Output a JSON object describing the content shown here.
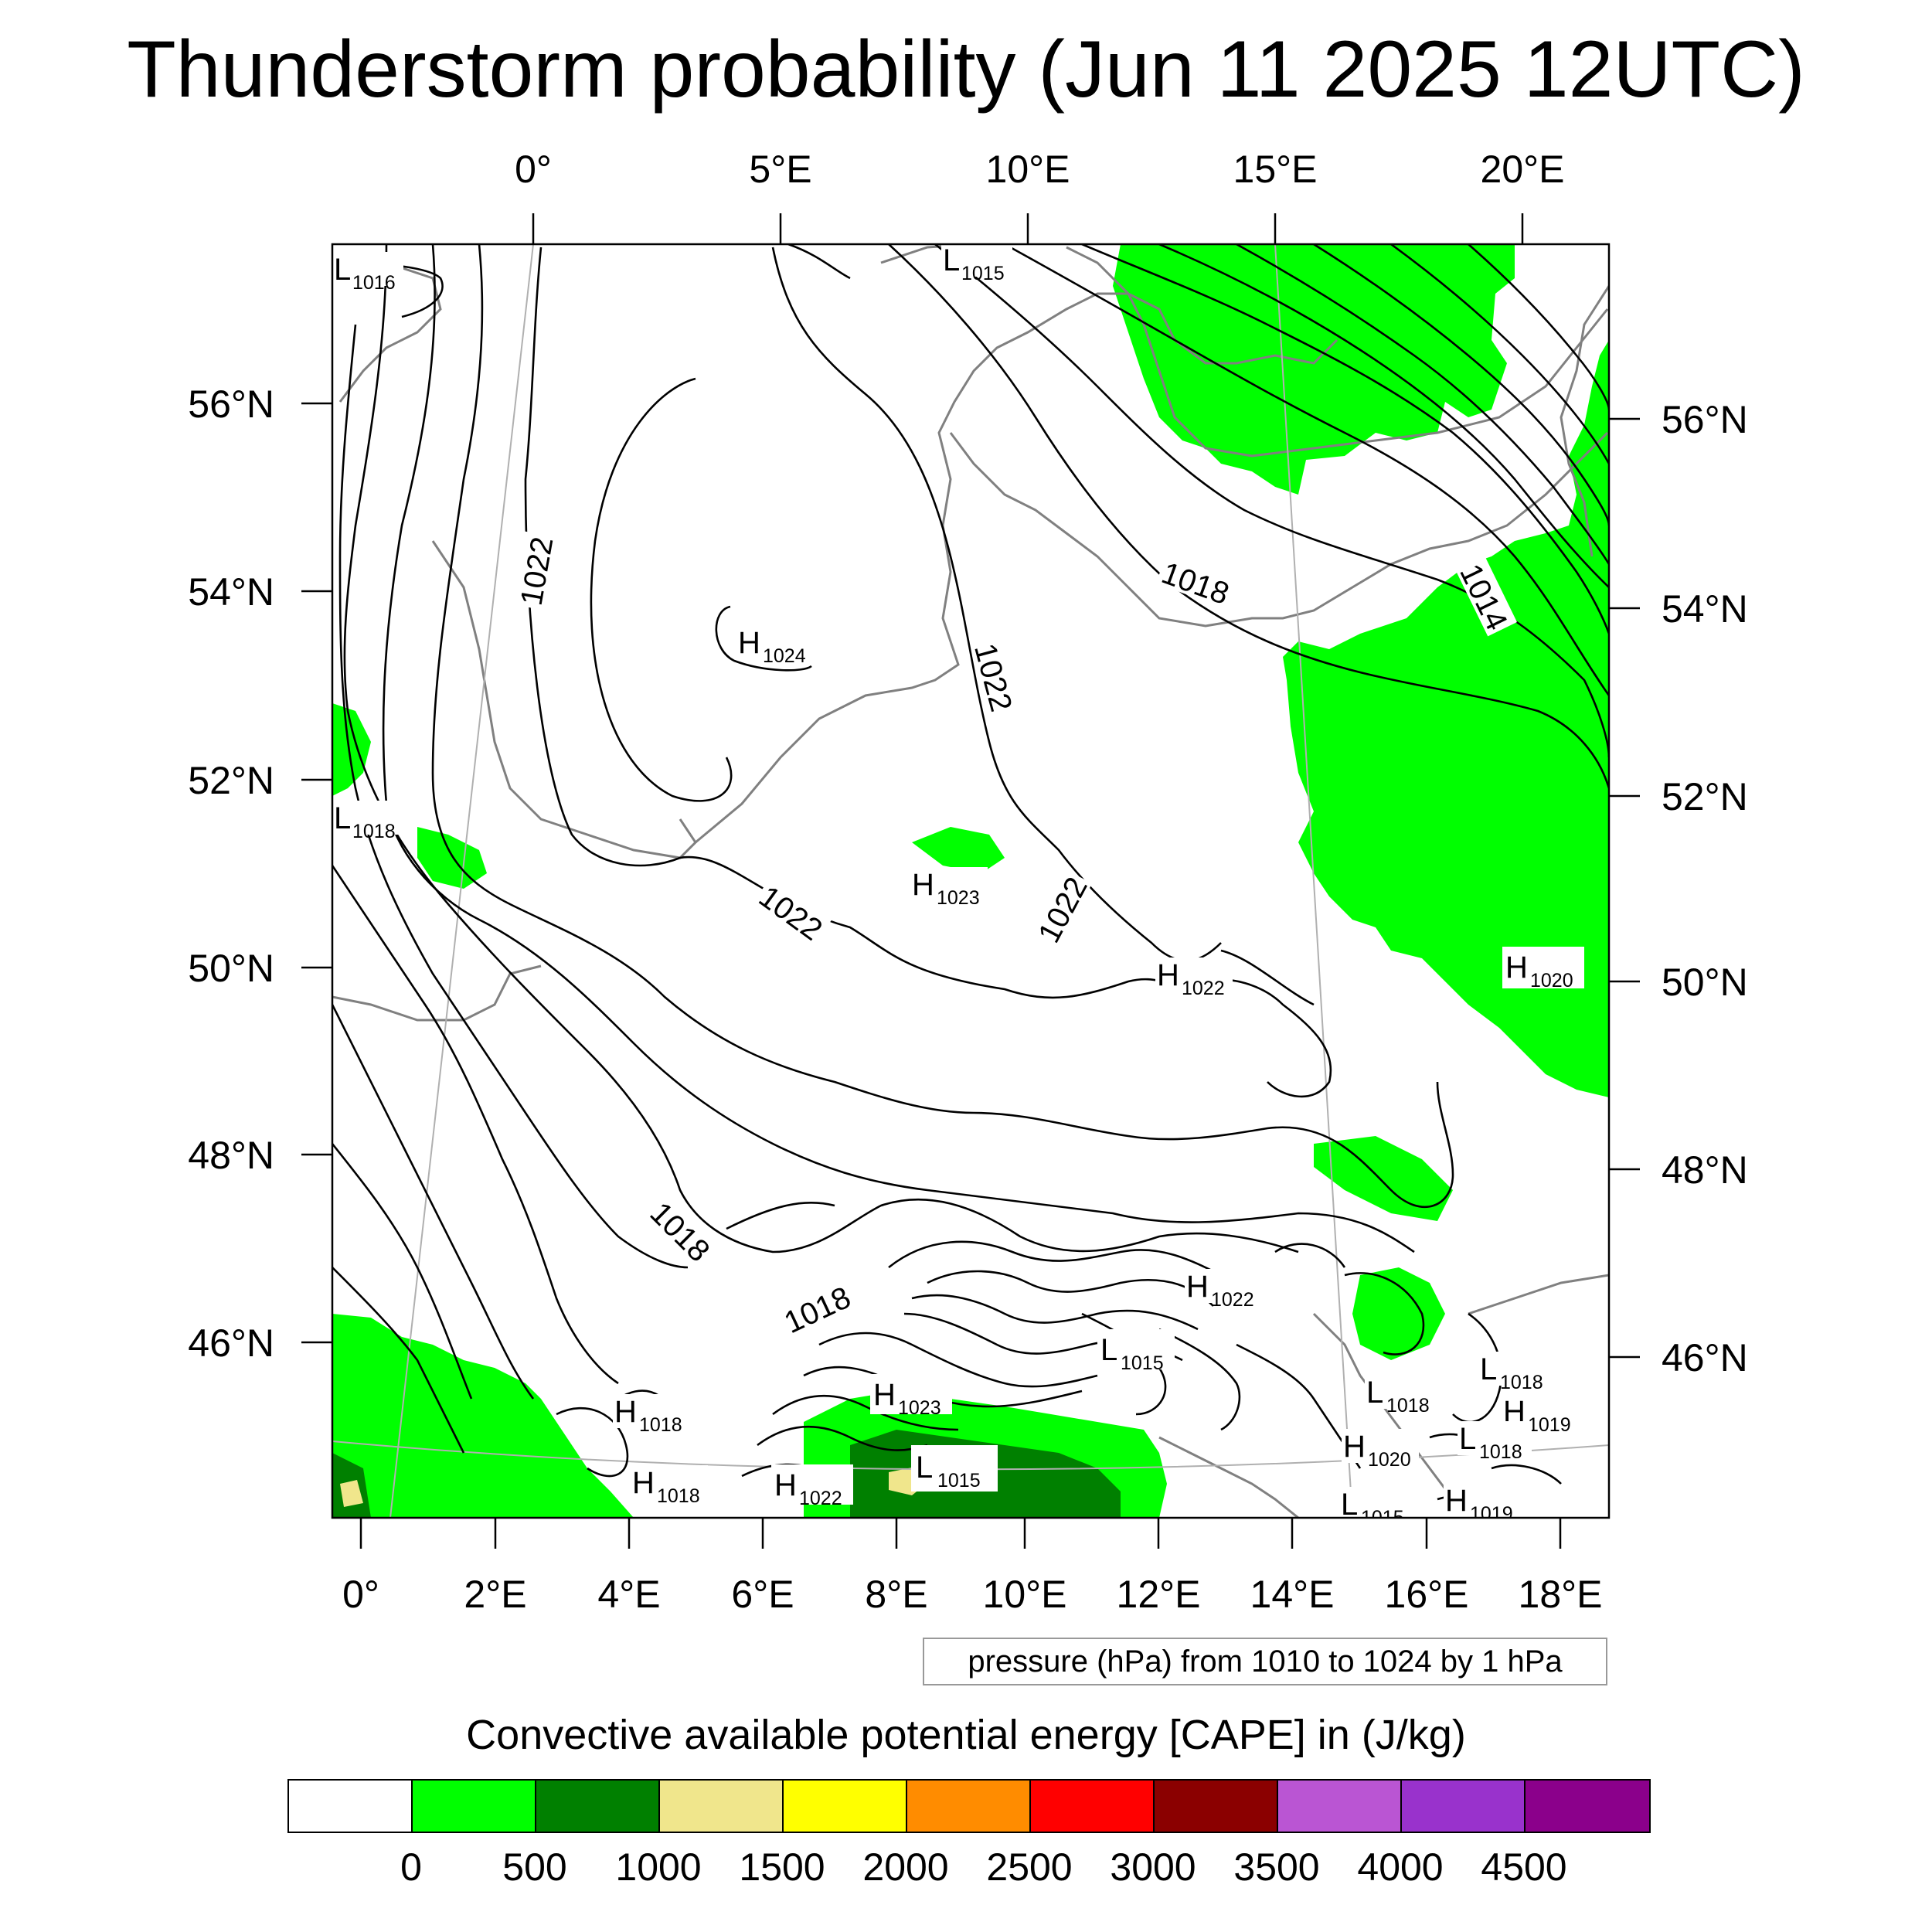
{
  "title": "Thunderstorm probability (Jun 11 2025 12UTC)",
  "top_axis_labels": [
    "0°",
    "5°E",
    "10°E",
    "15°E",
    "20°E"
  ],
  "bottom_axis_labels": [
    "0°",
    "2°E",
    "4°E",
    "6°E",
    "8°E",
    "10°E",
    "12°E",
    "14°E",
    "16°E",
    "18°E"
  ],
  "left_axis_labels": [
    "56°N",
    "54°N",
    "52°N",
    "50°N",
    "48°N",
    "46°N"
  ],
  "right_axis_labels": [
    "56°N",
    "54°N",
    "52°N",
    "50°N",
    "48°N",
    "46°N"
  ],
  "pressure_centers": [
    {
      "letter": "L",
      "value": "1016"
    },
    {
      "letter": "L",
      "value": "1015"
    },
    {
      "letter": "H",
      "value": "1024"
    },
    {
      "letter": "L",
      "value": "1018"
    },
    {
      "letter": "H",
      "value": "1023"
    },
    {
      "letter": "H",
      "value": "1022"
    },
    {
      "letter": "H",
      "value": "1020"
    },
    {
      "letter": "H",
      "value": "1022"
    },
    {
      "letter": "H",
      "value": "1023"
    },
    {
      "letter": "H",
      "value": "1022"
    },
    {
      "letter": "L",
      "value": "1015"
    },
    {
      "letter": "H",
      "value": "1018"
    },
    {
      "letter": "H",
      "value": "1018"
    },
    {
      "letter": "L",
      "value": "1015"
    },
    {
      "letter": "L",
      "value": "1018"
    },
    {
      "letter": "L",
      "value": "1018"
    },
    {
      "letter": "H",
      "value": "1019"
    },
    {
      "letter": "H",
      "value": "1020"
    },
    {
      "letter": "L",
      "value": "1015"
    },
    {
      "letter": "L",
      "value": "1018"
    },
    {
      "letter": "H",
      "value": "1019"
    }
  ],
  "isobar_labels": [
    "1022",
    "1018",
    "1014",
    "1022",
    "1022",
    "1022",
    "1018",
    "1018"
  ],
  "pressure_note": "pressure (hPa) from 1010 to 1024 by 1 hPa",
  "cape_title": "Convective available potential energy [CAPE] in (J/kg)",
  "colorbar": {
    "colors": [
      "#ffffff",
      "#00ff00",
      "#008000",
      "#f0e68c",
      "#ffff00",
      "#ff8c00",
      "#ff0000",
      "#8b0000",
      "#ba55d3",
      "#9932cc",
      "#8b008b"
    ],
    "labels": [
      "0",
      "500",
      "1000",
      "1500",
      "2000",
      "2500",
      "3000",
      "3500",
      "4000",
      "4500"
    ]
  },
  "map_colors": {
    "cape_low": "#00ff00",
    "cape_mid": "#008000",
    "cape_high": "#f0e68c",
    "coast": "#808080",
    "isobar": "#000000"
  }
}
